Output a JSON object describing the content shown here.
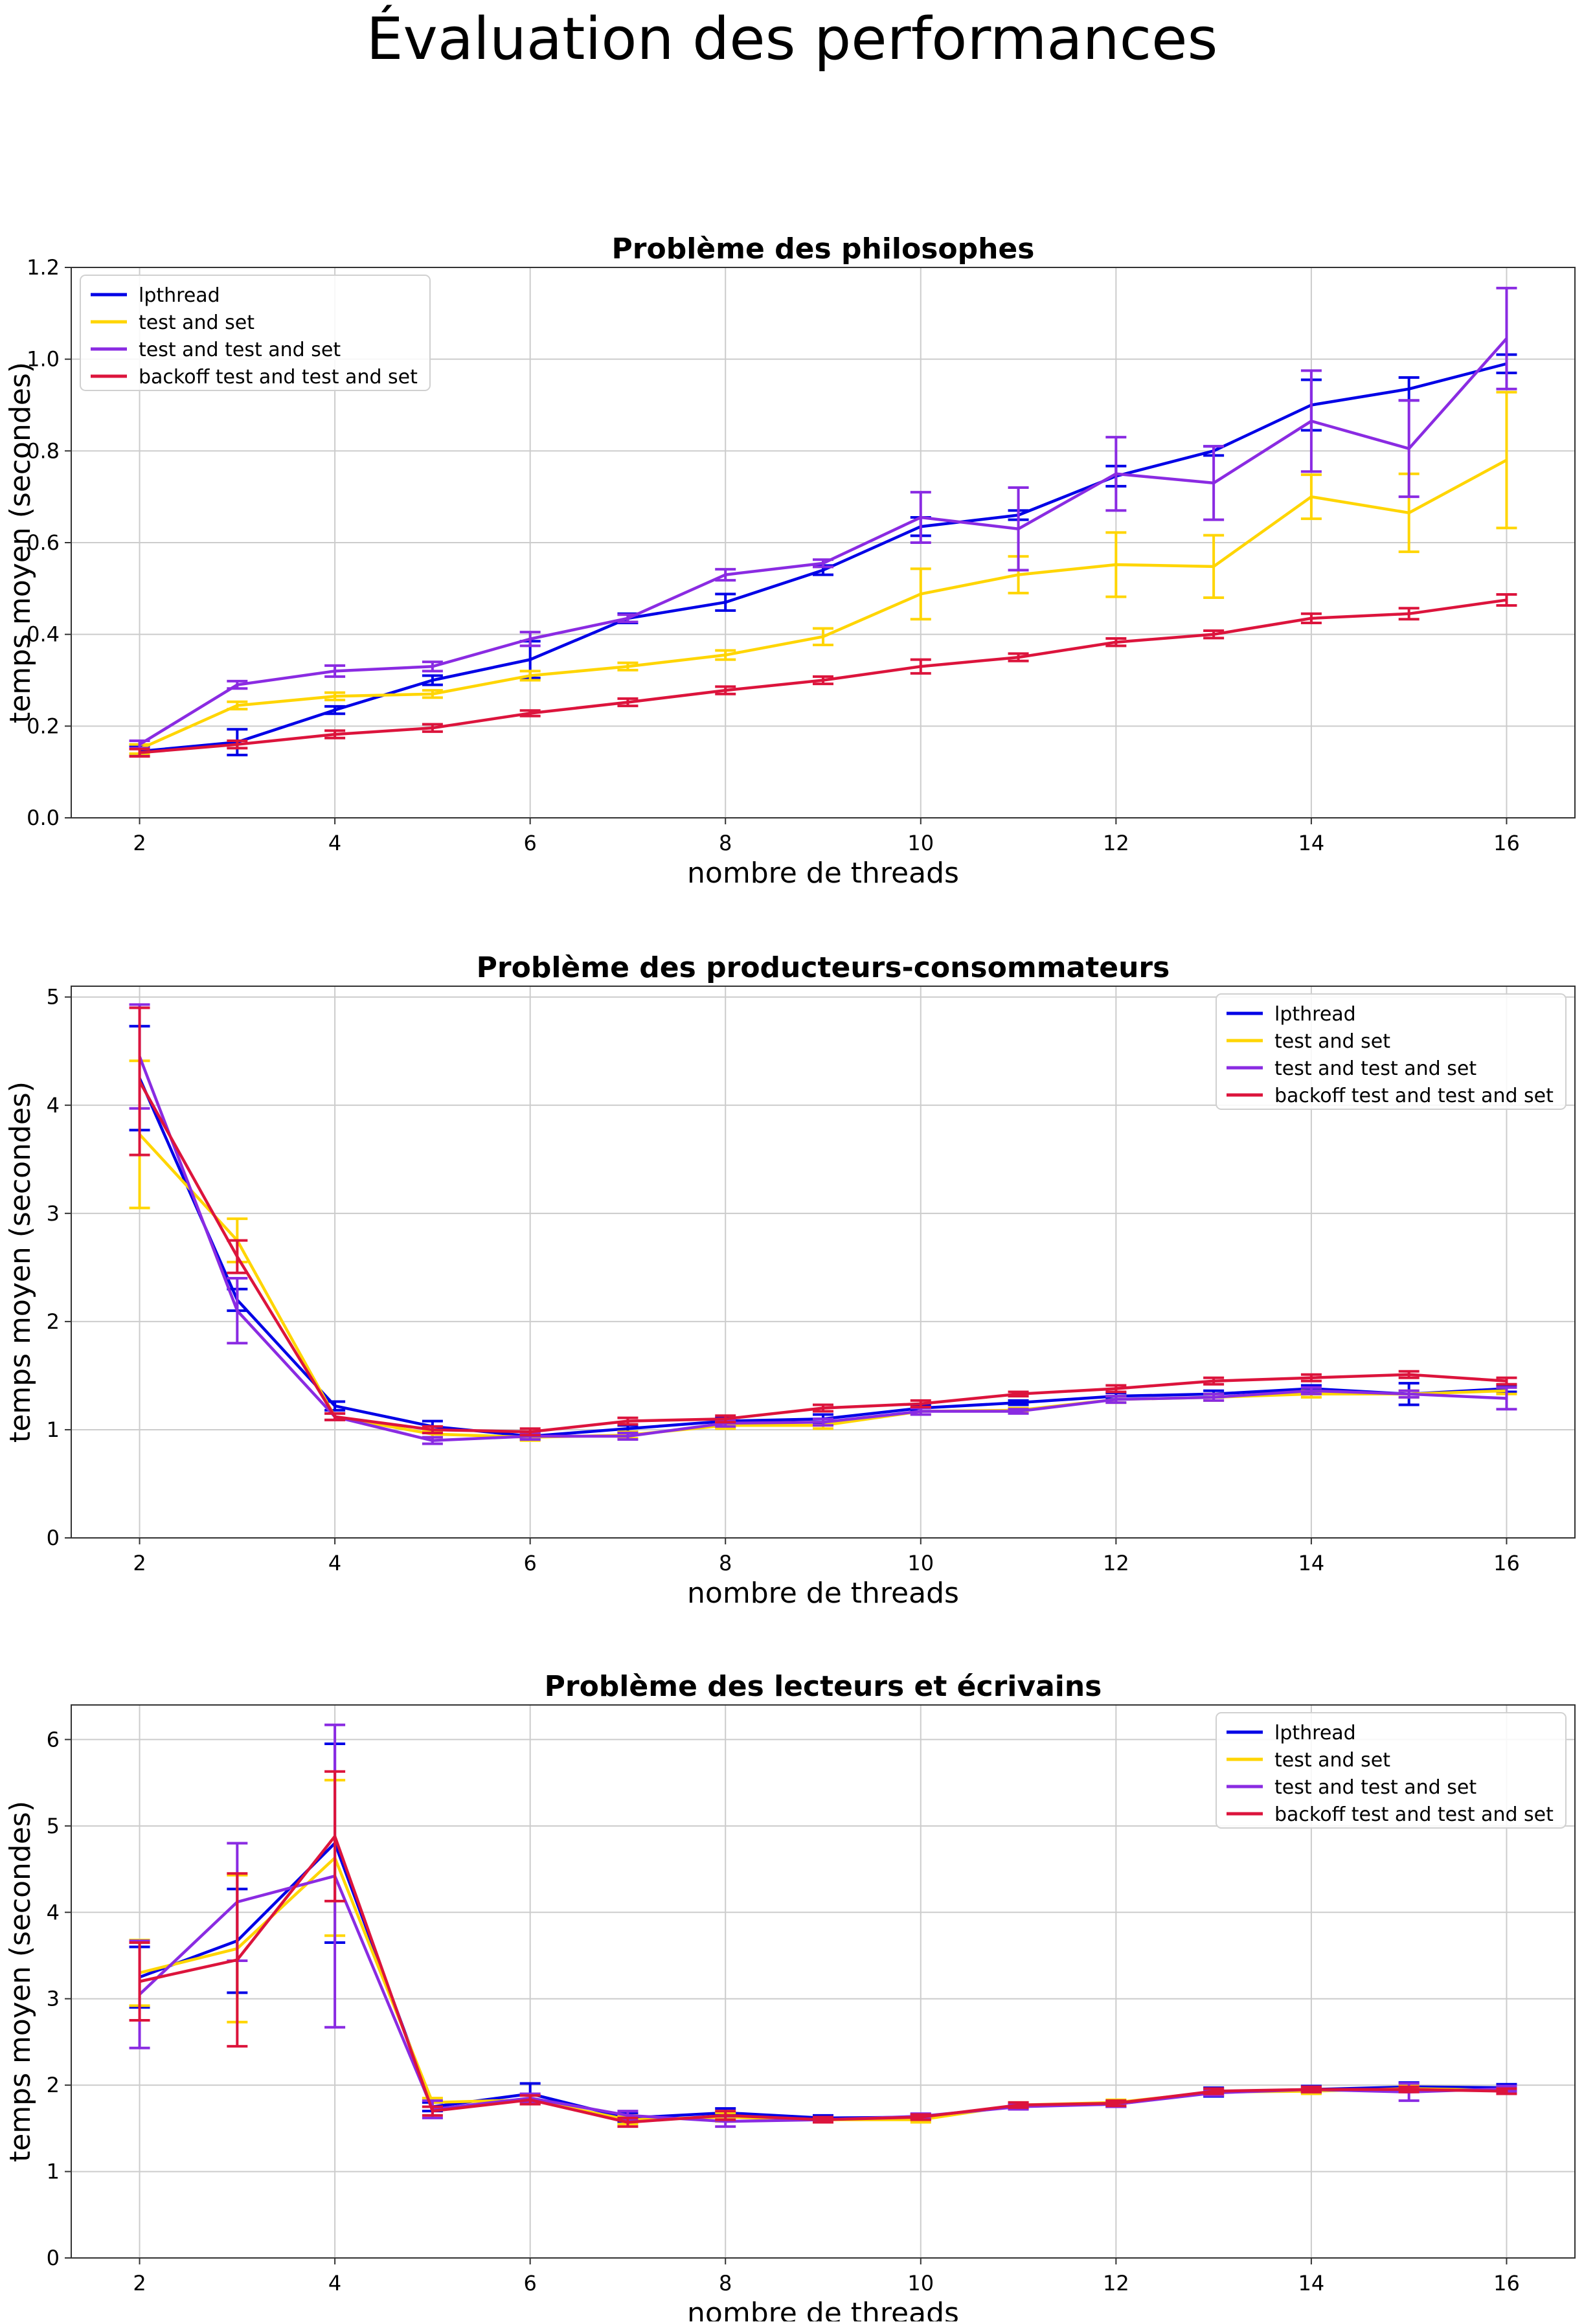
{
  "figure": {
    "title": "Évaluation des performances"
  },
  "colors": {
    "lpthread": "#0000e6",
    "tas": "#ffd500",
    "ttas": "#8a2be2",
    "backoff": "#dc143c",
    "grid": "#cccccc",
    "axis": "#333333"
  },
  "chart_data": [
    {
      "type": "line",
      "title": "Problème des philosophes",
      "xlabel": "nombre de threads",
      "ylabel": "temps moyen (secondes)",
      "xlim": [
        1.3,
        16.7
      ],
      "ylim": [
        0,
        1.2
      ],
      "xticks": [
        2,
        4,
        6,
        8,
        10,
        12,
        14,
        16
      ],
      "yticks": [
        "0.0",
        "0.2",
        "0.4",
        "0.6",
        "0.8",
        "1.0",
        "1.2"
      ],
      "grid": true,
      "legend_position": "upper-left",
      "x": [
        2,
        3,
        4,
        5,
        6,
        7,
        8,
        9,
        10,
        11,
        12,
        13,
        14,
        15,
        16
      ],
      "series": [
        {
          "name": "lpthread",
          "color": "#0000e6",
          "values": [
            0.145,
            0.165,
            0.235,
            0.3,
            0.345,
            0.435,
            0.47,
            0.54,
            0.635,
            0.66,
            0.745,
            0.8,
            0.9,
            0.935,
            0.99
          ],
          "err": [
            0.01,
            0.028,
            0.008,
            0.01,
            0.04,
            0.01,
            0.018,
            0.01,
            0.02,
            0.01,
            0.022,
            0.01,
            0.055,
            0.025,
            0.02
          ]
        },
        {
          "name": "test and set",
          "color": "#ffd500",
          "values": [
            0.15,
            0.245,
            0.265,
            0.27,
            0.31,
            0.33,
            0.355,
            0.395,
            0.488,
            0.53,
            0.552,
            0.548,
            0.7,
            0.665,
            0.78
          ],
          "err": [
            0.01,
            0.008,
            0.008,
            0.008,
            0.01,
            0.008,
            0.01,
            0.018,
            0.055,
            0.04,
            0.07,
            0.068,
            0.048,
            0.085,
            0.148
          ]
        },
        {
          "name": "test and test and set",
          "color": "#8a2be2",
          "values": [
            0.16,
            0.29,
            0.32,
            0.33,
            0.39,
            0.435,
            0.53,
            0.555,
            0.655,
            0.63,
            0.75,
            0.73,
            0.865,
            0.805,
            1.045
          ],
          "err": [
            0.008,
            0.008,
            0.012,
            0.01,
            0.015,
            0.008,
            0.012,
            0.008,
            0.055,
            0.09,
            0.08,
            0.08,
            0.11,
            0.105,
            0.11
          ]
        },
        {
          "name": "backoff test and test and set",
          "color": "#dc143c",
          "values": [
            0.142,
            0.16,
            0.182,
            0.196,
            0.228,
            0.252,
            0.278,
            0.3,
            0.33,
            0.35,
            0.383,
            0.4,
            0.435,
            0.445,
            0.475
          ],
          "err": [
            0.008,
            0.008,
            0.008,
            0.008,
            0.006,
            0.008,
            0.008,
            0.008,
            0.015,
            0.008,
            0.008,
            0.008,
            0.01,
            0.012,
            0.012
          ]
        }
      ]
    },
    {
      "type": "line",
      "title": "Problème des producteurs-consommateurs",
      "xlabel": "nombre de threads",
      "ylabel": "temps moyen (secondes)",
      "xlim": [
        1.3,
        16.7
      ],
      "ylim": [
        0,
        5.1
      ],
      "xticks": [
        2,
        4,
        6,
        8,
        10,
        12,
        14,
        16
      ],
      "yticks": [
        "0",
        "1",
        "2",
        "3",
        "4",
        "5"
      ],
      "grid": true,
      "legend_position": "upper-right",
      "x": [
        2,
        3,
        4,
        5,
        6,
        7,
        8,
        9,
        10,
        11,
        12,
        13,
        14,
        15,
        16
      ],
      "series": [
        {
          "name": "lpthread",
          "color": "#0000e6",
          "values": [
            4.25,
            2.2,
            1.22,
            1.03,
            0.94,
            1.01,
            1.08,
            1.1,
            1.2,
            1.25,
            1.31,
            1.33,
            1.38,
            1.33,
            1.38
          ],
          "err": [
            0.48,
            0.1,
            0.04,
            0.05,
            0.03,
            0.03,
            0.03,
            0.04,
            0.03,
            0.02,
            0.03,
            0.03,
            0.03,
            0.1,
            0.03
          ]
        },
        {
          "name": "test and set",
          "color": "#ffd500",
          "values": [
            3.73,
            2.75,
            1.12,
            0.96,
            0.93,
            0.95,
            1.04,
            1.04,
            1.17,
            1.18,
            1.28,
            1.3,
            1.33,
            1.33,
            1.36
          ],
          "err": [
            0.68,
            0.2,
            0.03,
            0.03,
            0.03,
            0.03,
            0.03,
            0.03,
            0.03,
            0.02,
            0.03,
            0.03,
            0.03,
            0.03,
            0.03
          ]
        },
        {
          "name": "test and test and set",
          "color": "#8a2be2",
          "values": [
            4.45,
            2.1,
            1.12,
            0.9,
            0.94,
            0.94,
            1.06,
            1.07,
            1.17,
            1.17,
            1.28,
            1.3,
            1.36,
            1.33,
            1.29
          ],
          "err": [
            0.48,
            0.3,
            0.03,
            0.03,
            0.03,
            0.03,
            0.03,
            0.03,
            0.03,
            0.02,
            0.03,
            0.03,
            0.03,
            0.03,
            0.1
          ]
        },
        {
          "name": "backoff test and test and set",
          "color": "#dc143c",
          "values": [
            4.22,
            2.6,
            1.12,
            1.0,
            0.98,
            1.08,
            1.1,
            1.2,
            1.24,
            1.33,
            1.38,
            1.45,
            1.48,
            1.51,
            1.45
          ],
          "err": [
            0.68,
            0.15,
            0.03,
            0.03,
            0.03,
            0.03,
            0.03,
            0.03,
            0.03,
            0.02,
            0.03,
            0.03,
            0.03,
            0.03,
            0.03
          ]
        }
      ]
    },
    {
      "type": "line",
      "title": "Problème des lecteurs et écrivains",
      "xlabel": "nombre de threads",
      "ylabel": "temps moyen (secondes)",
      "xlim": [
        1.3,
        16.7
      ],
      "ylim": [
        0,
        6.4
      ],
      "xticks": [
        2,
        4,
        6,
        8,
        10,
        12,
        14,
        16
      ],
      "yticks": [
        "0",
        "1",
        "2",
        "3",
        "4",
        "5",
        "6"
      ],
      "grid": true,
      "legend_position": "upper-right",
      "x": [
        2,
        3,
        4,
        5,
        6,
        7,
        8,
        9,
        10,
        11,
        12,
        13,
        14,
        15,
        16
      ],
      "series": [
        {
          "name": "lpthread",
          "color": "#0000e6",
          "values": [
            3.25,
            3.67,
            4.8,
            1.75,
            1.9,
            1.62,
            1.68,
            1.62,
            1.63,
            1.76,
            1.78,
            1.92,
            1.95,
            1.98,
            1.97
          ],
          "err": [
            0.35,
            0.6,
            1.15,
            0.05,
            0.12,
            0.05,
            0.05,
            0.03,
            0.03,
            0.03,
            0.03,
            0.05,
            0.04,
            0.05,
            0.04
          ]
        },
        {
          "name": "test and set",
          "color": "#ffd500",
          "values": [
            3.3,
            3.58,
            4.63,
            1.8,
            1.83,
            1.6,
            1.63,
            1.6,
            1.6,
            1.77,
            1.8,
            1.92,
            1.93,
            1.96,
            1.94
          ],
          "err": [
            0.38,
            0.85,
            0.9,
            0.05,
            0.05,
            0.05,
            0.05,
            0.03,
            0.03,
            0.03,
            0.03,
            0.03,
            0.03,
            0.03,
            0.03
          ]
        },
        {
          "name": "test and test and set",
          "color": "#8a2be2",
          "values": [
            3.05,
            4.12,
            4.42,
            1.72,
            1.85,
            1.65,
            1.58,
            1.6,
            1.64,
            1.75,
            1.78,
            1.91,
            1.95,
            1.92,
            1.96
          ],
          "err": [
            0.62,
            0.68,
            1.75,
            0.1,
            0.05,
            0.05,
            0.06,
            0.03,
            0.03,
            0.03,
            0.03,
            0.03,
            0.03,
            0.1,
            0.03
          ]
        },
        {
          "name": "backoff test and test and set",
          "color": "#dc143c",
          "values": [
            3.2,
            3.45,
            4.88,
            1.7,
            1.83,
            1.57,
            1.65,
            1.6,
            1.63,
            1.77,
            1.79,
            1.93,
            1.95,
            1.95,
            1.93
          ],
          "err": [
            0.45,
            1.0,
            0.75,
            0.05,
            0.05,
            0.05,
            0.05,
            0.03,
            0.03,
            0.03,
            0.03,
            0.03,
            0.03,
            0.03,
            0.03
          ]
        }
      ]
    }
  ]
}
